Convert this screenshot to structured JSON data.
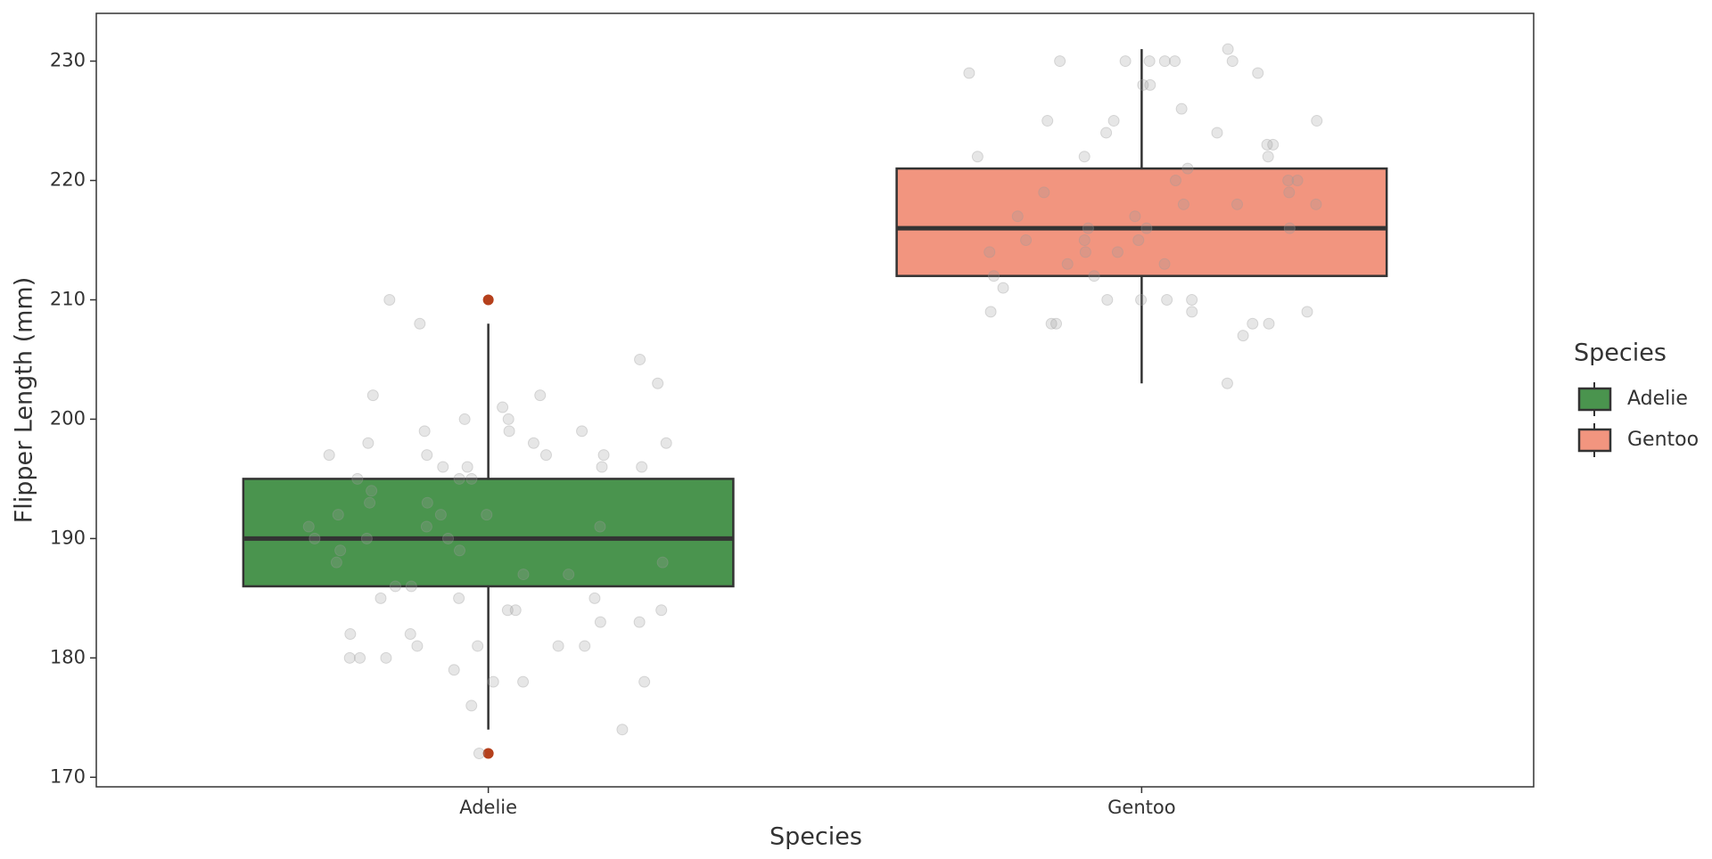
{
  "chart_data": {
    "type": "box",
    "x_label": "Species",
    "y_label": "Flipper Length (mm)",
    "legend_title": "Species",
    "legend_position": "right",
    "categories": [
      "Adelie",
      "Gentoo"
    ],
    "ylim": [
      169.2,
      234
    ],
    "yticks": [
      170,
      180,
      190,
      200,
      210,
      220,
      230
    ],
    "outlier_color": "#b5401c",
    "point_color": "#9a9a9a",
    "boxes": [
      {
        "name": "Adelie",
        "color": "#4a944e",
        "whisker_low": 174,
        "q1": 186,
        "median": 190,
        "q3": 195,
        "whisker_high": 208,
        "outliers": [
          172,
          210
        ],
        "points": [
          205,
          197,
          199,
          196,
          195,
          198,
          198,
          197,
          201,
          203,
          197,
          202,
          198,
          196,
          196,
          196,
          200,
          202,
          199,
          199,
          200,
          197,
          195,
          195,
          193,
          192,
          191,
          190,
          189,
          188,
          187,
          186,
          185,
          185,
          184,
          184,
          183,
          181,
          181,
          178,
          178,
          176,
          180,
          181,
          185,
          182,
          178,
          180,
          180,
          181,
          182,
          183,
          184,
          179,
          174,
          172,
          210,
          208,
          194,
          193,
          192,
          191,
          190,
          189,
          188,
          187,
          186,
          190,
          191,
          192
        ]
      },
      {
        "name": "Gentoo",
        "color": "#f2957f",
        "whisker_low": 203,
        "q1": 212,
        "median": 216,
        "q3": 221,
        "whisker_high": 231,
        "outliers": [],
        "points": [
          231,
          230,
          230,
          230,
          229,
          230,
          228,
          228,
          230,
          229,
          230,
          226,
          224,
          223,
          222,
          225,
          225,
          225,
          224,
          223,
          222,
          222,
          221,
          220,
          219,
          218,
          217,
          216,
          215,
          214,
          213,
          212,
          210,
          210,
          211,
          210,
          209,
          208,
          208,
          207,
          208,
          209,
          209,
          210,
          208,
          203,
          212,
          214,
          218,
          220,
          217,
          216,
          215,
          214,
          219,
          213,
          215,
          218,
          220,
          216
        ]
      }
    ]
  }
}
